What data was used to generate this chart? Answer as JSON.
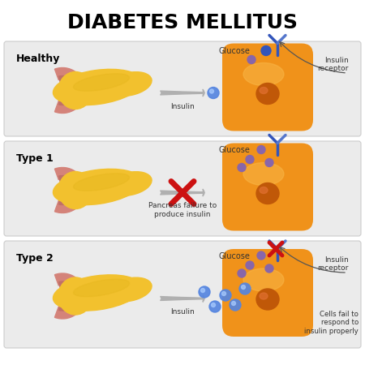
{
  "title": "DIABETES MELLITUS",
  "title_fontsize": 18,
  "title_fontweight": "bold",
  "bg_color": "#ffffff",
  "panel_bg": "#ebebeb",
  "panel_border": "#cccccc",
  "panels": [
    {
      "label": "Healthy",
      "show_x": false,
      "show_insulin_dots": true,
      "insulin_single_dot": true,
      "cell_receptors_ok": true,
      "glucose_scattered": false,
      "cells_fail": false,
      "insulin_label": "Insulin",
      "glucose_label": "Glucose",
      "receptor_label": "Insulin\nreceptor",
      "cells_fail_label": ""
    },
    {
      "label": "Type 1",
      "show_x": true,
      "show_insulin_dots": false,
      "insulin_single_dot": false,
      "cell_receptors_ok": false,
      "glucose_scattered": true,
      "cells_fail": false,
      "insulin_label": "Pancreas failure to\nproduce insulin",
      "glucose_label": "Glucose",
      "receptor_label": "",
      "cells_fail_label": ""
    },
    {
      "label": "Type 2",
      "show_x": false,
      "show_insulin_dots": true,
      "insulin_single_dot": false,
      "cell_receptors_ok": false,
      "glucose_scattered": true,
      "cells_fail": true,
      "insulin_label": "Insulin",
      "glucose_label": "Glucose",
      "receptor_label": "Insulin\nreceptor",
      "cells_fail_label": "Cells fail to\nrespond to\ninsulin properly"
    }
  ],
  "pancreas_yellow": "#f2c12e",
  "pancreas_yellow2": "#e8b820",
  "pancreas_pink": "#d4837a",
  "pancreas_pink2": "#c07068",
  "cell_orange_light": "#f9b84a",
  "cell_orange": "#f0921a",
  "cell_nucleus": "#c05808",
  "arrow_gray": "#b0b0b0",
  "arrow_gray_dark": "#909090",
  "insulin_dot_blue": "#5585e0",
  "glucose_dot_purple": "#8866aa",
  "receptor_blue": "#3355bb",
  "receptor_blue2": "#5577cc",
  "red_x": "#cc1111"
}
